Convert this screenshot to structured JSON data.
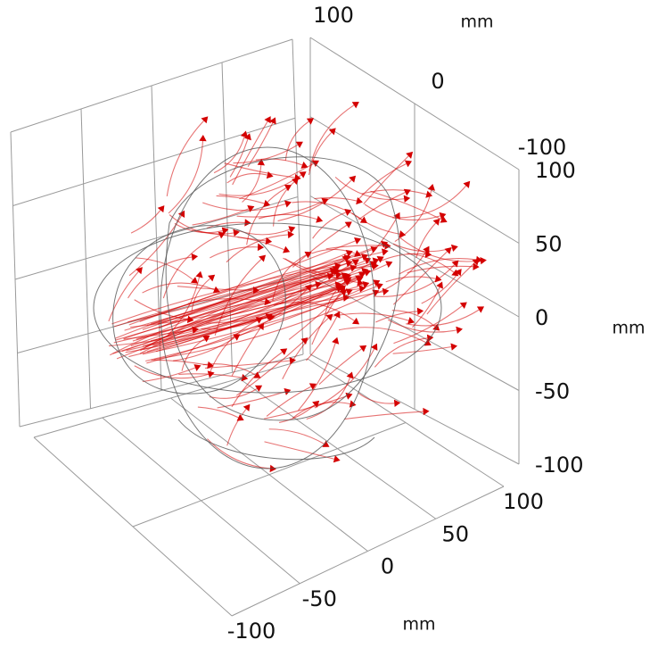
{
  "chart_data": {
    "type": "streamline3d",
    "xlabel": "mm",
    "ylabel": "mm",
    "zlabel": "mm",
    "xlim": [
      -100,
      100
    ],
    "ylim": [
      -100,
      100
    ],
    "zlim": [
      -100,
      100
    ],
    "xticks": [
      -100,
      -50,
      0,
      50,
      100
    ],
    "yticks": [
      100,
      0,
      -100
    ],
    "zticks": [
      -100,
      -50,
      0,
      50,
      100
    ],
    "grid": true,
    "color": "#d40000"
  }
}
